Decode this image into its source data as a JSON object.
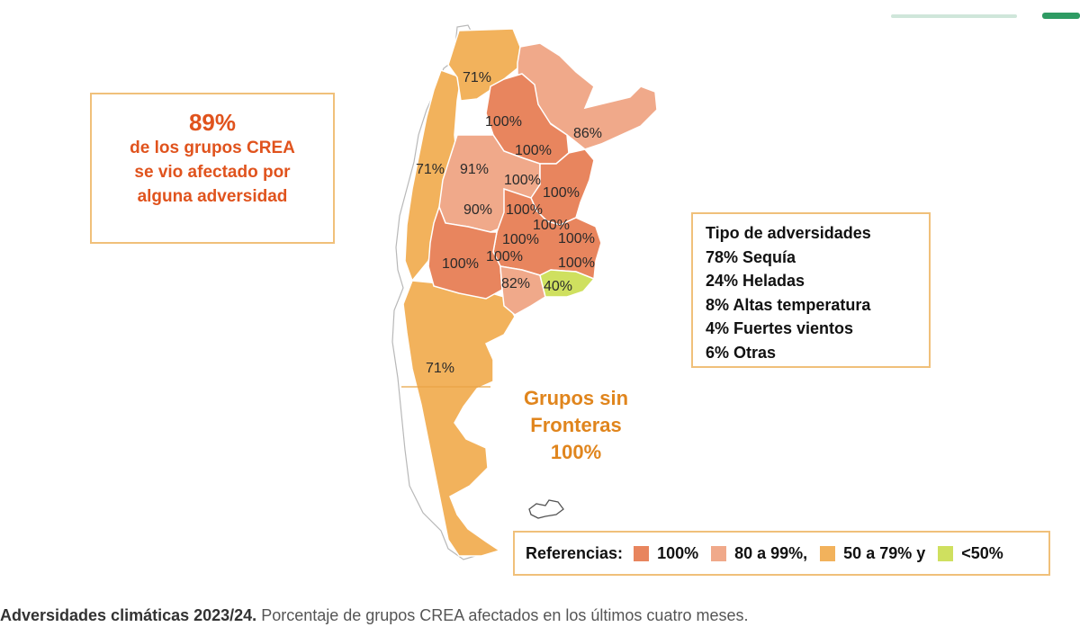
{
  "summary": {
    "percent": "89%",
    "line1": "de los grupos CREA",
    "line2": "se vio afectado por",
    "line3": "alguna adversidad"
  },
  "types": {
    "title": "Tipo de adversidades",
    "items": [
      "78% Sequía",
      "24% Heladas",
      "8% Altas temperatura",
      "4% Fuertes vientos",
      "6% Otras"
    ]
  },
  "sin_fronteras": {
    "line1": "Grupos sin",
    "line2": "Fronteras",
    "line3": "100%"
  },
  "references": {
    "title": "Referencias:",
    "items": [
      {
        "label": "100%",
        "color": "#e8855e"
      },
      {
        "label": "80 a 99%,",
        "color": "#f0a98a"
      },
      {
        "label": "50 a 79%  y",
        "color": "#f2b25c"
      },
      {
        "label": "<50%",
        "color": "#cfe05f"
      }
    ]
  },
  "regions": {
    "north_west": "71%",
    "nea_north": "100%",
    "nea_east": "86%",
    "central_1": "100%",
    "cuyo_west": "71%",
    "central_91": "91%",
    "central_2": "100%",
    "entre_rios": "100%",
    "central_90": "90%",
    "central_3": "100%",
    "central_4": "100%",
    "central_5": "100%",
    "central_6": "100%",
    "pampa_west": "100%",
    "pampa_1": "100%",
    "buenos_aires": "100%",
    "pampa_82": "82%",
    "sudeste": "40%",
    "patagonia": "71%"
  },
  "caption": {
    "bold": "Adversidades climáticas 2023/24.",
    "text": " Porcentaje de grupos CREA afectados en los últimos cuatro meses."
  }
}
